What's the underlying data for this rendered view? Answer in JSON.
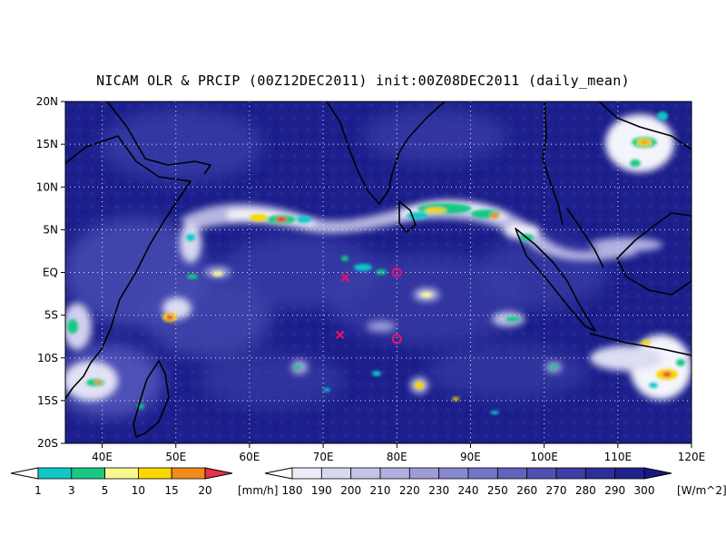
{
  "title": "NICAM OLR & PRCIP (00Z12DEC2011) init:00Z08DEC2011 (daily_mean)",
  "map": {
    "lon_range": [
      35,
      120
    ],
    "lat_range": [
      -20,
      20
    ],
    "lon_ticks": [
      {
        "v": 40,
        "label": "40E"
      },
      {
        "v": 50,
        "label": "50E"
      },
      {
        "v": 60,
        "label": "60E"
      },
      {
        "v": 70,
        "label": "70E"
      },
      {
        "v": 80,
        "label": "80E"
      },
      {
        "v": 90,
        "label": "90E"
      },
      {
        "v": 100,
        "label": "100E"
      },
      {
        "v": 110,
        "label": "110E"
      },
      {
        "v": 120,
        "label": "120E"
      }
    ],
    "lat_ticks": [
      {
        "v": 20,
        "label": "20N"
      },
      {
        "v": 15,
        "label": "15N"
      },
      {
        "v": 10,
        "label": "10N"
      },
      {
        "v": 5,
        "label": "5N"
      },
      {
        "v": 0,
        "label": "EQ"
      },
      {
        "v": -5,
        "label": "5S"
      },
      {
        "v": -10,
        "label": "10S"
      },
      {
        "v": -15,
        "label": "15S"
      },
      {
        "v": -20,
        "label": "20S"
      }
    ],
    "grid": "dotted",
    "colors": {
      "ocean_deep": "#1c1f8c",
      "ocean_mid": "#3a3fa8",
      "cloud_light": "#e8e8f6",
      "coast": "#000000",
      "marker": "#e0106e"
    }
  },
  "markers": [
    {
      "type": "x",
      "lon": 73,
      "lat": -0.6,
      "color": "#e0106e"
    },
    {
      "type": "o",
      "lon": 80,
      "lat": 0.0,
      "color": "#e0106e"
    },
    {
      "type": "x",
      "lon": 72.3,
      "lat": -7.3,
      "color": "#e0106e"
    },
    {
      "type": "o",
      "lon": 80,
      "lat": -7.8,
      "color": "#e0106e"
    }
  ],
  "precip_colorbar": {
    "labels": [
      "1",
      "3",
      "5",
      "10",
      "15",
      "20"
    ],
    "units": "[mm/h]",
    "colors": [
      "#11c8c8",
      "#18c883",
      "#f8f891",
      "#f8d800",
      "#f28a1c",
      "#e8314a"
    ]
  },
  "olr_colorbar": {
    "labels": [
      "180",
      "190",
      "200",
      "210",
      "220",
      "230",
      "240",
      "250",
      "260",
      "270",
      "280",
      "290",
      "300"
    ],
    "units": "[W/m^2]",
    "colors": [
      "#ececf8",
      "#d8d8f0",
      "#c4c4e8",
      "#b0b0e0",
      "#9c9cd8",
      "#8888d0",
      "#7474c6",
      "#6262bc",
      "#5050b2",
      "#3e3ea6",
      "#2e2e9a",
      "#22228e",
      "#181884"
    ]
  },
  "chart_data": {
    "type": "heatmap",
    "title": "NICAM OLR & PRCIP (00Z12DEC2011) init:00Z08DEC2011 (daily_mean)",
    "x_range": [
      35,
      120
    ],
    "y_range": [
      -20,
      20
    ],
    "x_tick_labels": [
      "40E",
      "50E",
      "60E",
      "70E",
      "80E",
      "90E",
      "100E",
      "110E",
      "120E"
    ],
    "y_tick_labels": [
      "20N",
      "15N",
      "10N",
      "5N",
      "EQ",
      "5S",
      "10S",
      "15S",
      "20S"
    ],
    "grid": true
  }
}
